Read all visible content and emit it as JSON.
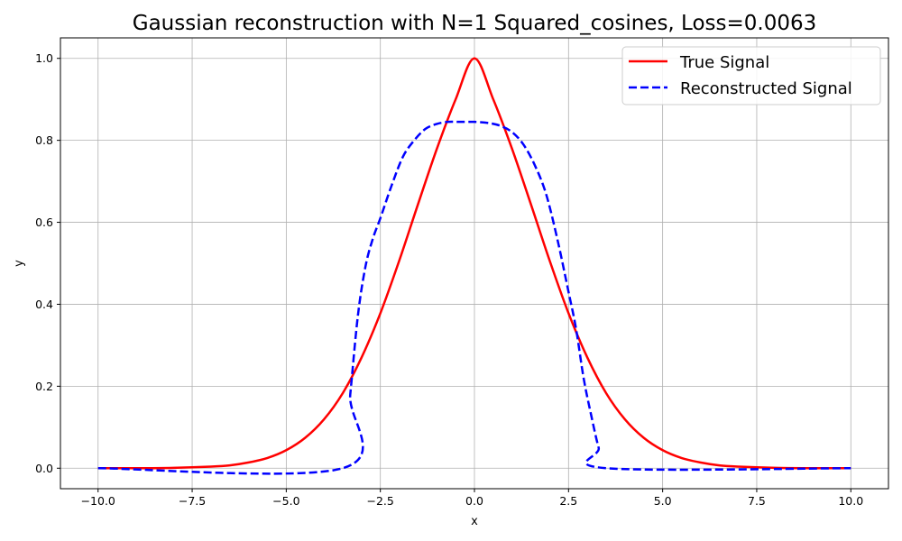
{
  "chart_data": {
    "type": "line",
    "title": "Gaussian reconstruction with N=1 Squared_cosines, Loss=0.0063",
    "xlabel": "x",
    "ylabel": "y",
    "xlim": [
      -11.0,
      11.0
    ],
    "ylim": [
      -0.05,
      1.05
    ],
    "grid": true,
    "legend_position": "top-right",
    "x_ticks": [
      -10.0,
      -7.5,
      -5.0,
      -2.5,
      0.0,
      2.5,
      5.0,
      7.5,
      10.0
    ],
    "x_tick_labels": [
      "−10.0",
      "−7.5",
      "−5.0",
      "−2.5",
      "0.0",
      "2.5",
      "5.0",
      "7.5",
      "10.0"
    ],
    "y_ticks": [
      0.0,
      0.2,
      0.4,
      0.6,
      0.8,
      1.0
    ],
    "y_tick_labels": [
      "0.0",
      "0.2",
      "0.4",
      "0.6",
      "0.8",
      "1.0"
    ],
    "series": [
      {
        "name": "True Signal",
        "color": "#ff0000",
        "style": "solid",
        "x": [
          -10,
          -9,
          -8,
          -7,
          -6.5,
          -6,
          -5.5,
          -5,
          -4.5,
          -4,
          -3.5,
          -3,
          -2.5,
          -2,
          -1.5,
          -1,
          -0.5,
          0,
          0.5,
          1,
          1.5,
          2,
          2.5,
          3,
          3.5,
          4,
          4.5,
          5,
          5.5,
          6,
          6.5,
          7,
          8,
          9,
          10
        ],
        "y": [
          0.0,
          0.0,
          0.001,
          0.004,
          0.007,
          0.014,
          0.025,
          0.044,
          0.074,
          0.119,
          0.183,
          0.27,
          0.378,
          0.506,
          0.644,
          0.779,
          0.9,
          1.0,
          0.9,
          0.779,
          0.644,
          0.506,
          0.378,
          0.27,
          0.183,
          0.119,
          0.074,
          0.044,
          0.025,
          0.014,
          0.007,
          0.004,
          0.001,
          0.0,
          0.0
        ]
      },
      {
        "name": "Reconstructed Signal",
        "color": "#0000ff",
        "style": "dashed",
        "x": [
          -10,
          -3.5,
          -3.3,
          -3.1,
          -2.9,
          -2.7,
          -2.5,
          -2.2,
          -1.9,
          -1.6,
          -1.3,
          -1.0,
          -0.7,
          -0.4,
          0.0,
          0.4,
          0.7,
          1.0,
          1.3,
          1.6,
          1.9,
          2.2,
          2.5,
          2.7,
          2.9,
          3.1,
          3.3,
          3.5,
          10
        ],
        "y": [
          0.0,
          0.0,
          0.18,
          0.37,
          0.49,
          0.56,
          0.61,
          0.69,
          0.76,
          0.8,
          0.828,
          0.84,
          0.845,
          0.845,
          0.845,
          0.842,
          0.835,
          0.82,
          0.79,
          0.74,
          0.67,
          0.56,
          0.43,
          0.34,
          0.22,
          0.13,
          0.05,
          0.0,
          0.0
        ]
      }
    ]
  }
}
